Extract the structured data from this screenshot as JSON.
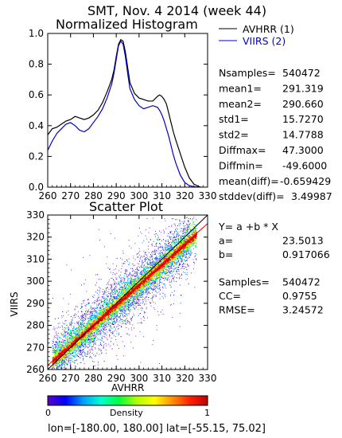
{
  "header": {
    "line1": "SMT,  Nov. 4 2014 (week 44)"
  },
  "legend": {
    "items": [
      {
        "label": "AVHRR (1)",
        "color": "#000000"
      },
      {
        "label": "VIIRS (2)",
        "color": "#0000cc"
      }
    ]
  },
  "stats_top": [
    {
      "label": "Nsamples=",
      "value": "540472"
    },
    {
      "label": "mean1=",
      "value": "291.319"
    },
    {
      "label": "mean2=",
      "value": "290.660"
    },
    {
      "label": "std1=",
      "value": "15.7270"
    },
    {
      "label": "std2=",
      "value": "14.7788"
    },
    {
      "label": "Diffmax=",
      "value": "47.3000"
    },
    {
      "label": "Diffmin=",
      "value": "-49.6000"
    },
    {
      "label": "mean(diff)=",
      "value": "-0.659429"
    },
    {
      "label": "stddev(diff)=",
      "value": "3.49987"
    }
  ],
  "stats_bottom": [
    {
      "label": "Y= a +b * X",
      "value": ""
    },
    {
      "label": "a=",
      "value": "23.5013"
    },
    {
      "label": "b=",
      "value": "0.917066"
    },
    {
      "label": "",
      "value": ""
    },
    {
      "label": "Samples=",
      "value": "540472"
    },
    {
      "label": "CC=",
      "value": "0.9755"
    },
    {
      "label": "RMSE=",
      "value": "3.24572"
    }
  ],
  "colorbar": {
    "label": "Density",
    "min_label": "0",
    "max_label": "1",
    "colors": [
      "#5a00c8",
      "#0000ff",
      "#00a0ff",
      "#00ffd0",
      "#00ff40",
      "#b0ff00",
      "#ffff00",
      "#ff9000",
      "#ff2000",
      "#c00000"
    ]
  },
  "footer": {
    "text": "lon=[-180.00, 180.00] lat=[-55.15, 75.02]"
  },
  "chart_data": [
    {
      "type": "line",
      "title": "Normalized Histogram",
      "xlabel": "",
      "ylabel": "",
      "xlim": [
        260,
        330
      ],
      "ylim": [
        0,
        1
      ],
      "xticks": [
        260,
        270,
        280,
        290,
        300,
        310,
        320,
        330
      ],
      "yticks": [
        0.0,
        0.2,
        0.4,
        0.6,
        0.8,
        1.0
      ],
      "ytick_labels": [
        "0.0",
        "0.2",
        "0.4",
        "0.6",
        "0.8",
        "1.0"
      ],
      "series": [
        {
          "color": "#000000",
          "x": [
            260,
            262,
            264,
            266,
            268,
            270,
            272,
            274,
            276,
            278,
            280,
            282,
            284,
            286,
            288,
            289,
            290,
            291,
            292,
            293,
            294,
            295,
            296,
            298,
            300,
            302,
            304,
            306,
            308,
            309,
            310,
            311,
            312,
            313,
            314,
            315,
            316,
            318,
            320,
            322,
            324,
            326,
            327
          ],
          "y": [
            0.34,
            0.38,
            0.39,
            0.41,
            0.43,
            0.44,
            0.46,
            0.45,
            0.44,
            0.45,
            0.47,
            0.5,
            0.55,
            0.62,
            0.7,
            0.76,
            0.85,
            0.93,
            0.96,
            0.95,
            0.88,
            0.78,
            0.68,
            0.61,
            0.58,
            0.57,
            0.56,
            0.56,
            0.59,
            0.6,
            0.59,
            0.57,
            0.54,
            0.48,
            0.42,
            0.36,
            0.31,
            0.22,
            0.13,
            0.06,
            0.02,
            0.005,
            0.0
          ]
        },
        {
          "color": "#0000cc",
          "x": [
            260,
            262,
            264,
            266,
            268,
            270,
            272,
            274,
            276,
            278,
            280,
            282,
            284,
            286,
            288,
            289,
            290,
            291,
            292,
            293,
            294,
            295,
            296,
            298,
            300,
            302,
            304,
            306,
            308,
            309,
            310,
            311,
            312,
            313,
            314,
            315,
            316,
            318,
            320,
            322,
            324,
            326
          ],
          "y": [
            0.24,
            0.3,
            0.35,
            0.38,
            0.41,
            0.42,
            0.4,
            0.37,
            0.36,
            0.38,
            0.42,
            0.46,
            0.51,
            0.58,
            0.67,
            0.74,
            0.83,
            0.92,
            0.95,
            0.93,
            0.85,
            0.74,
            0.64,
            0.57,
            0.53,
            0.51,
            0.52,
            0.53,
            0.52,
            0.5,
            0.47,
            0.43,
            0.38,
            0.33,
            0.27,
            0.21,
            0.16,
            0.08,
            0.03,
            0.01,
            0.003,
            0.0
          ]
        }
      ]
    },
    {
      "type": "heatmap",
      "title": "Scatter Plot",
      "xlabel": "AVHRR",
      "ylabel": "VIIRS",
      "xlim": [
        260,
        330
      ],
      "ylim": [
        260,
        330
      ],
      "xticks": [
        260,
        270,
        280,
        290,
        300,
        310,
        320,
        330
      ],
      "yticks": [
        260,
        270,
        280,
        290,
        300,
        310,
        320,
        330
      ],
      "fit_line": {
        "a": 23.5013,
        "b": 0.917066,
        "color": "#ff0000"
      },
      "one_to_one_line": {
        "color": "#000000"
      }
    }
  ]
}
